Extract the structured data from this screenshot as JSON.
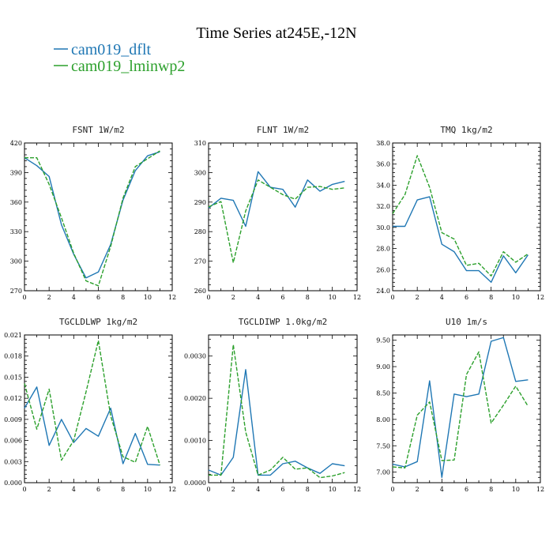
{
  "figure": {
    "title": "Time Series at245E,-12N",
    "legend": [
      {
        "name": "cam019_dflt",
        "color": "#1f77b4",
        "dash": "solid"
      },
      {
        "name": "cam019_lminwp2",
        "color": "#2ca02c",
        "dash": "dashed"
      }
    ]
  },
  "chart_data": [
    {
      "type": "line",
      "title": "FSNT   1W/m2",
      "x": [
        0,
        1,
        2,
        3,
        4,
        5,
        6,
        7,
        8,
        9,
        10,
        11
      ],
      "xlim": [
        0,
        12
      ],
      "xticks": [
        0,
        2,
        4,
        6,
        8,
        10,
        12
      ],
      "ylim": [
        270,
        420
      ],
      "yticks": [
        270,
        300,
        330,
        360,
        390,
        420
      ],
      "ytick_labels": [
        "270",
        "300",
        "330",
        "360",
        "390",
        "420"
      ],
      "series": [
        {
          "name": "cam019_dflt",
          "values": [
            405,
            397,
            386,
            337,
            307,
            283,
            289,
            317,
            362,
            392,
            407,
            411
          ]
        },
        {
          "name": "cam019_lminwp2",
          "values": [
            405,
            405,
            378,
            344,
            308,
            280,
            275,
            315,
            364,
            396,
            404,
            412
          ]
        }
      ]
    },
    {
      "type": "line",
      "title": "FLNT   1W/m2",
      "x": [
        0,
        1,
        2,
        3,
        4,
        5,
        6,
        7,
        8,
        9,
        10,
        11
      ],
      "xlim": [
        0,
        12
      ],
      "xticks": [
        0,
        2,
        4,
        6,
        8,
        10,
        12
      ],
      "ylim": [
        260,
        310
      ],
      "yticks": [
        260,
        270,
        280,
        290,
        300,
        310
      ],
      "ytick_labels": [
        "260",
        "270",
        "280",
        "290",
        "300",
        "310"
      ],
      "series": [
        {
          "name": "cam019_dflt",
          "values": [
            288,
            291.3,
            290.6,
            281.8,
            300.3,
            295,
            294.3,
            288.3,
            297.5,
            293.7,
            296,
            297
          ]
        },
        {
          "name": "cam019_lminwp2",
          "values": [
            288.4,
            290.2,
            269.5,
            287,
            297.5,
            295,
            292.5,
            291,
            295,
            295.3,
            294.3,
            294.8
          ]
        }
      ]
    },
    {
      "type": "line",
      "title": "TMQ   1kg/m2",
      "x": [
        0,
        1,
        2,
        3,
        4,
        5,
        6,
        7,
        8,
        9,
        10,
        11
      ],
      "xlim": [
        0,
        12
      ],
      "xticks": [
        0,
        2,
        4,
        6,
        8,
        10,
        12
      ],
      "ylim": [
        24,
        38
      ],
      "yticks": [
        24,
        26,
        28,
        30,
        32,
        34,
        36,
        38
      ],
      "ytick_labels": [
        "24.0",
        "26.0",
        "28.0",
        "30.0",
        "32.0",
        "34.0",
        "36.0",
        "38.0"
      ],
      "series": [
        {
          "name": "cam019_dflt",
          "values": [
            30.1,
            30.1,
            32.6,
            32.9,
            28.4,
            27.7,
            25.9,
            25.9,
            24.8,
            27.3,
            25.7,
            27.4
          ]
        },
        {
          "name": "cam019_lminwp2",
          "values": [
            31.3,
            33.1,
            36.8,
            33.8,
            29.5,
            28.9,
            26.4,
            26.6,
            25.4,
            27.7,
            26.7,
            27.5
          ]
        }
      ]
    },
    {
      "type": "line",
      "title": "TGCLDLWP   1kg/m2",
      "x": [
        0,
        1,
        2,
        3,
        4,
        5,
        6,
        7,
        8,
        9,
        10,
        11
      ],
      "xlim": [
        0,
        12
      ],
      "xticks": [
        0,
        2,
        4,
        6,
        8,
        10,
        12
      ],
      "ylim": [
        0,
        0.021
      ],
      "yticks": [
        0,
        0.003,
        0.006,
        0.009,
        0.012,
        0.015,
        0.018,
        0.021
      ],
      "ytick_labels": [
        "0.000",
        "0.003",
        "0.006",
        "0.009",
        "0.012",
        "0.015",
        "0.018",
        "0.021"
      ],
      "series": [
        {
          "name": "cam019_dflt",
          "values": [
            0.0106,
            0.0136,
            0.0053,
            0.009,
            0.0057,
            0.0077,
            0.0066,
            0.0106,
            0.0027,
            0.007,
            0.0026,
            0.0025
          ]
        },
        {
          "name": "cam019_lminwp2",
          "values": [
            0.0141,
            0.0076,
            0.0133,
            0.0032,
            0.006,
            0.0129,
            0.0202,
            0.0095,
            0.0037,
            0.0029,
            0.008,
            0.0025
          ]
        }
      ]
    },
    {
      "type": "line",
      "title": "TGCLDIWP   1.0kg/m2",
      "x": [
        0,
        1,
        2,
        3,
        4,
        5,
        6,
        7,
        8,
        9,
        10,
        11
      ],
      "xlim": [
        0,
        12
      ],
      "xticks": [
        0,
        2,
        4,
        6,
        8,
        10,
        12
      ],
      "ylim": [
        0,
        0.0035
      ],
      "yticks": [
        0,
        0.001,
        0.002,
        0.003
      ],
      "ytick_labels": [
        "0.0000",
        "0.0010",
        "0.0020",
        "0.0030"
      ],
      "series": [
        {
          "name": "cam019_dflt",
          "values": [
            0.0003,
            0.00018,
            0.0006,
            0.00268,
            0.00018,
            0.00018,
            0.00045,
            0.00051,
            0.00035,
            0.00022,
            0.00045,
            0.0004
          ]
        },
        {
          "name": "cam019_lminwp2",
          "values": [
            0.00018,
            0.00018,
            0.00327,
            0.0012,
            0.00018,
            0.0003,
            0.0006,
            0.00032,
            0.00035,
            0.00012,
            0.00016,
            0.00024
          ]
        }
      ]
    },
    {
      "type": "line",
      "title": "U10   1m/s",
      "x": [
        0,
        1,
        2,
        3,
        4,
        5,
        6,
        7,
        8,
        9,
        10,
        11
      ],
      "xlim": [
        0,
        12
      ],
      "xticks": [
        0,
        2,
        4,
        6,
        8,
        10,
        12
      ],
      "ylim": [
        6.8,
        9.6
      ],
      "yticks": [
        7.0,
        7.5,
        8.0,
        8.5,
        9.0,
        9.5
      ],
      "ytick_labels": [
        "7.00",
        "7.50",
        "8.00",
        "8.50",
        "9.00",
        "9.50"
      ],
      "series": [
        {
          "name": "cam019_dflt",
          "values": [
            7.15,
            7.1,
            7.2,
            8.73,
            6.9,
            8.48,
            8.43,
            8.48,
            9.48,
            9.55,
            8.72,
            8.75
          ]
        },
        {
          "name": "cam019_lminwp2",
          "values": [
            7.1,
            7.08,
            8.08,
            8.33,
            7.22,
            7.23,
            8.85,
            9.28,
            7.93,
            8.27,
            8.63,
            8.25
          ]
        }
      ]
    }
  ]
}
